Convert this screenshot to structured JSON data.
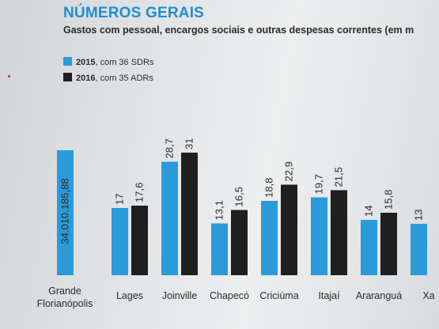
{
  "header": {
    "title": "NÚMEROS GERAIS",
    "subtitle": "Gastos com pessoal, encargos sociais e outras despesas correntes (em m"
  },
  "colors": {
    "series_2015": "#2b9ad9",
    "series_2016": "#1f1f1f"
  },
  "chart_data": {
    "type": "bar",
    "title": "NÚMEROS GERAIS",
    "subtitle": "Gastos com pessoal, encargos sociais e outras despesas correntes (em m",
    "xlabel": "",
    "ylabel": "",
    "categories": [
      "Grande Florianópolis",
      "Lages",
      "Joinville",
      "Chapecó",
      "Criciúma",
      "Itajaí",
      "Araranguá",
      "Xa"
    ],
    "series": [
      {
        "name": "2015, com 36 SDRs",
        "legend_year": "2015",
        "legend_rest": ", com 36 SDRs",
        "values": [
          null,
          17,
          28.7,
          13.1,
          18.8,
          19.7,
          14,
          13
        ],
        "labels": [
          "",
          "17",
          "28,7",
          "13,1",
          "18,8",
          "19,7",
          "14",
          "13"
        ]
      },
      {
        "name": "2016, com 35 ADRs",
        "legend_year": "2016",
        "legend_rest": ", com 35 ADRs",
        "values": [
          null,
          17.6,
          31,
          16.5,
          22.9,
          21.5,
          15.8,
          null
        ],
        "labels": [
          "",
          "17,6",
          "31",
          "16,5",
          "22,9",
          "21,5",
          "15,8",
          ""
        ]
      }
    ],
    "special_bar": {
      "category": "Grande Florianópolis",
      "series": "2015, com 36 SDRs",
      "value": 34010185.88,
      "label": "34.010.185,88"
    },
    "legend_position": "top-left",
    "grid": false
  }
}
